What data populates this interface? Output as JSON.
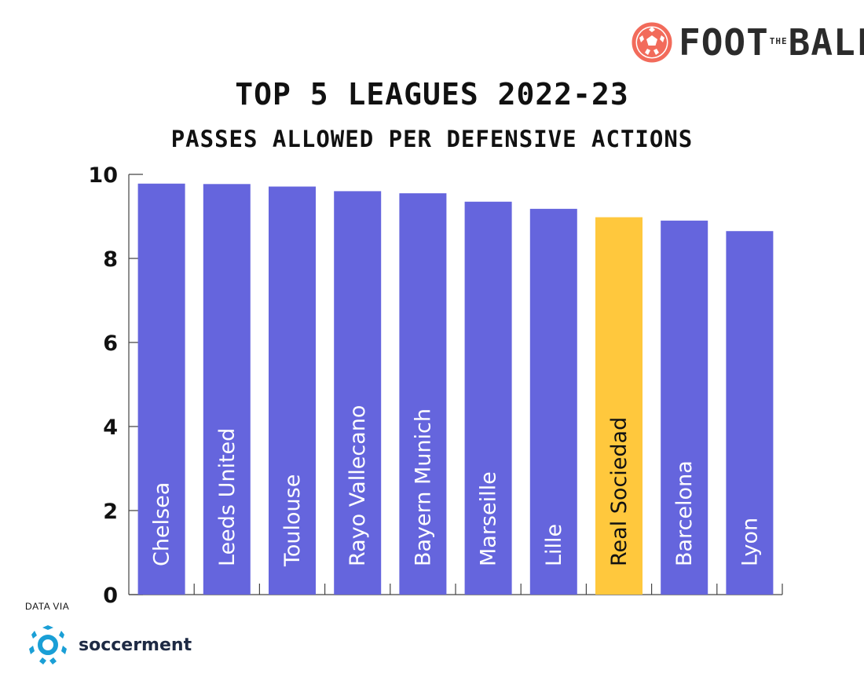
{
  "brand": {
    "logo_text_left": "FOOT",
    "logo_text_small": "THE",
    "logo_text_right": "BALL",
    "logo_icon": "football-icon",
    "logo_color": "#f26b5b"
  },
  "footer": {
    "data_via": "DATA VIA",
    "source_name": "soccerment",
    "source_icon": "soccerment-logo-icon",
    "source_color": "#1a9fd6"
  },
  "chart_data": {
    "type": "bar",
    "title": "TOP 5 LEAGUES 2022-23",
    "subtitle": "PASSES ALLOWED PER DEFENSIVE ACTIONS",
    "xlabel": "",
    "ylabel": "",
    "ylim": [
      0,
      10
    ],
    "yticks": [
      "0",
      "2",
      "4",
      "6",
      "8",
      "10"
    ],
    "categories": [
      "Chelsea",
      "Leeds United",
      "Toulouse",
      "Rayo Vallecano",
      "Bayern Munich",
      "Marseille",
      "Lille",
      "Real Sociedad",
      "Barcelona",
      "Lyon"
    ],
    "values": [
      9.78,
      9.77,
      9.71,
      9.6,
      9.55,
      9.35,
      9.18,
      8.98,
      8.9,
      8.65
    ],
    "highlight": "Real Sociedad",
    "colors": {
      "bar": "#6565dd",
      "highlight": "#ffc83d",
      "label": "#ffffff",
      "highlight_label": "#111111"
    },
    "grid": false
  }
}
